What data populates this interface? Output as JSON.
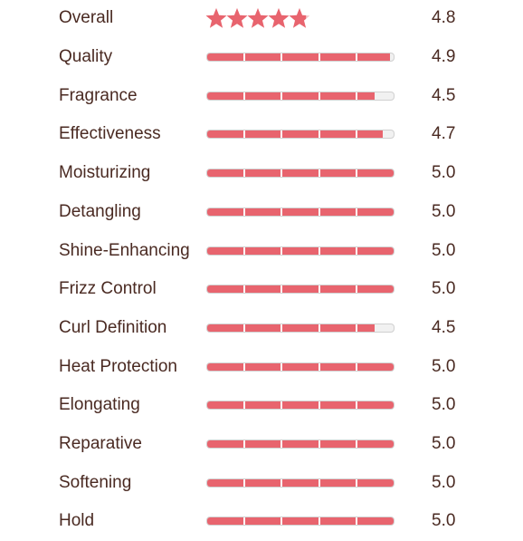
{
  "accent_color": "#e8646e",
  "overall": {
    "label": "Overall",
    "value": "4.8",
    "stars_max": 5,
    "stars_value": 4.8
  },
  "ratings": [
    {
      "label": "Quality",
      "value": "4.9",
      "score": 4.9
    },
    {
      "label": "Fragrance",
      "value": "4.5",
      "score": 4.5
    },
    {
      "label": "Effectiveness",
      "value": "4.7",
      "score": 4.7
    },
    {
      "label": "Moisturizing",
      "value": "5.0",
      "score": 5.0
    },
    {
      "label": "Detangling",
      "value": "5.0",
      "score": 5.0
    },
    {
      "label": "Shine-Enhancing",
      "value": "5.0",
      "score": 5.0
    },
    {
      "label": "Frizz Control",
      "value": "5.0",
      "score": 5.0
    },
    {
      "label": "Curl Definition",
      "value": "4.5",
      "score": 4.5
    },
    {
      "label": "Heat Protection",
      "value": "5.0",
      "score": 5.0
    },
    {
      "label": "Elongating",
      "value": "5.0",
      "score": 5.0
    },
    {
      "label": "Reparative",
      "value": "5.0",
      "score": 5.0
    },
    {
      "label": "Softening",
      "value": "5.0",
      "score": 5.0
    },
    {
      "label": "Hold",
      "value": "5.0",
      "score": 5.0
    }
  ],
  "score_max": 5
}
